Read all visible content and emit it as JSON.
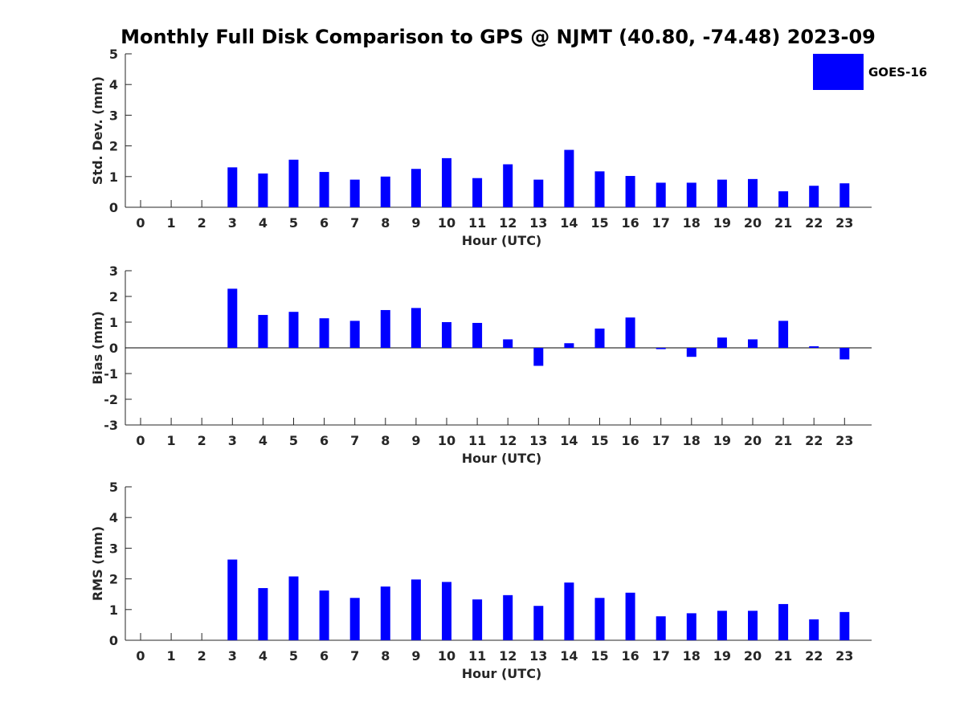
{
  "title": "Monthly Full Disk Comparison to GPS @ NJMT (40.80, -74.48) 2023-09",
  "legend": {
    "label": "GOES-16",
    "position": "top-right"
  },
  "colors": {
    "bar": "#0000ff",
    "axis": "#262626"
  },
  "chart_data": [
    {
      "type": "bar",
      "categories": [
        "0",
        "1",
        "2",
        "3",
        "4",
        "5",
        "6",
        "7",
        "8",
        "9",
        "10",
        "11",
        "12",
        "13",
        "14",
        "15",
        "16",
        "17",
        "18",
        "19",
        "20",
        "21",
        "22",
        "23"
      ],
      "series": [
        {
          "name": "GOES-16",
          "values": [
            null,
            null,
            null,
            1.3,
            1.1,
            1.55,
            1.15,
            0.9,
            1.0,
            1.25,
            1.6,
            0.95,
            1.4,
            0.9,
            1.87,
            1.17,
            1.02,
            0.8,
            0.8,
            0.9,
            0.92,
            0.52,
            0.7,
            0.78
          ]
        }
      ],
      "xlabel": "Hour (UTC)",
      "ylabel": "Std. Dev. (mm)",
      "ylim": [
        0,
        5
      ],
      "yticks": [
        "0",
        "1",
        "2",
        "3",
        "4",
        "5"
      ],
      "grid": false
    },
    {
      "type": "bar",
      "categories": [
        "0",
        "1",
        "2",
        "3",
        "4",
        "5",
        "6",
        "7",
        "8",
        "9",
        "10",
        "11",
        "12",
        "13",
        "14",
        "15",
        "16",
        "17",
        "18",
        "19",
        "20",
        "21",
        "22",
        "23"
      ],
      "series": [
        {
          "name": "GOES-16",
          "values": [
            null,
            null,
            null,
            2.3,
            1.28,
            1.4,
            1.15,
            1.05,
            1.47,
            1.55,
            1.0,
            0.97,
            0.33,
            -0.7,
            0.18,
            0.75,
            1.18,
            -0.05,
            -0.35,
            0.4,
            0.33,
            1.05,
            0.06,
            -0.45
          ]
        }
      ],
      "xlabel": "Hour (UTC)",
      "ylabel": "Bias (mm)",
      "ylim": [
        -3,
        3
      ],
      "yticks": [
        "-3",
        "-2",
        "-1",
        "0",
        "1",
        "2",
        "3"
      ],
      "grid": false
    },
    {
      "type": "bar",
      "categories": [
        "0",
        "1",
        "2",
        "3",
        "4",
        "5",
        "6",
        "7",
        "8",
        "9",
        "10",
        "11",
        "12",
        "13",
        "14",
        "15",
        "16",
        "17",
        "18",
        "19",
        "20",
        "21",
        "22",
        "23"
      ],
      "series": [
        {
          "name": "GOES-16",
          "values": [
            null,
            null,
            null,
            2.63,
            1.7,
            2.08,
            1.62,
            1.38,
            1.75,
            1.98,
            1.9,
            1.33,
            1.47,
            1.12,
            1.88,
            1.38,
            1.55,
            0.78,
            0.88,
            0.96,
            0.96,
            1.18,
            0.68,
            0.92
          ]
        }
      ],
      "xlabel": "Hour (UTC)",
      "ylabel": "RMS (mm)",
      "ylim": [
        0,
        5
      ],
      "yticks": [
        "0",
        "1",
        "2",
        "3",
        "4",
        "5"
      ],
      "grid": false
    }
  ]
}
